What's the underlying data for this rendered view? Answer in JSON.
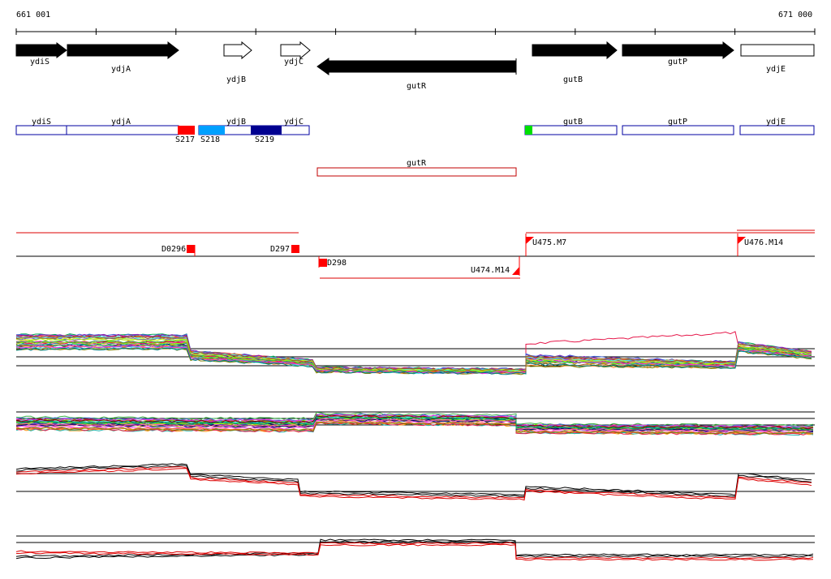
{
  "coordinates": {
    "start": "661 001",
    "end": "671 000"
  },
  "genes": [
    {
      "name": "ydiS",
      "strand": "+",
      "style": "filled"
    },
    {
      "name": "ydjA",
      "strand": "+",
      "style": "filled"
    },
    {
      "name": "ydjB",
      "strand": "+",
      "style": "open"
    },
    {
      "name": "ydjC",
      "strand": "+",
      "style": "open"
    },
    {
      "name": "gutR",
      "strand": "-",
      "style": "filled"
    },
    {
      "name": "gutB",
      "strand": "+",
      "style": "filled"
    },
    {
      "name": "gutP",
      "strand": "+",
      "style": "filled"
    },
    {
      "name": "ydjE",
      "strand": "+",
      "style": "open"
    }
  ],
  "feature_boxes_plus": [
    "ydiS",
    "ydjA",
    "ydjB",
    "ydjC",
    "gutB",
    "gutP",
    "ydjE"
  ],
  "feature_boxes_minus": [
    "gutR"
  ],
  "segments": [
    {
      "label": "S217",
      "color": "#ff0000"
    },
    {
      "label": "S218",
      "color": "#00a0ff"
    },
    {
      "label": "S219",
      "color": "#000090"
    },
    {
      "label": "",
      "color": "#00e000"
    }
  ],
  "transcripts": [
    {
      "label": "D0296",
      "strand": "+"
    },
    {
      "label": "D297",
      "strand": "+"
    },
    {
      "label": "D298",
      "strand": "-"
    },
    {
      "label": "U474.M14",
      "strand": "-"
    },
    {
      "label": "U475.M7",
      "strand": "+"
    },
    {
      "label": "U476.M14",
      "strand": "+"
    }
  ],
  "colors": {
    "gene_fill": "#000000",
    "feature_box": "#0000a0",
    "minus_box": "#c00000",
    "marker": "#ff0000",
    "track_red": "#dd0000"
  }
}
